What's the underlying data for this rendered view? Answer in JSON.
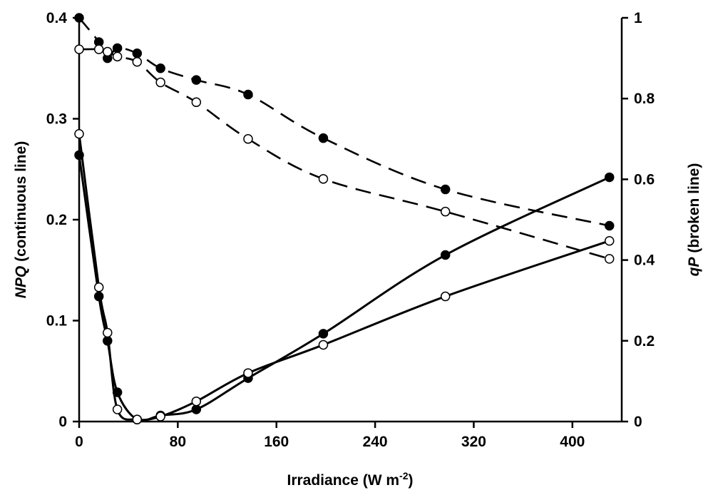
{
  "chart_data": {
    "type": "line",
    "title": "",
    "xlabel": {
      "main": "Irradiance (W m",
      "sup": "-2",
      "close": ")"
    },
    "ylabel_left": {
      "italic": "NPQ",
      "rest": " (continuous line)"
    },
    "ylabel_right": {
      "italic": "qP",
      "rest": " (broken line)"
    },
    "xlim": [
      0,
      440
    ],
    "ylim_left": [
      0,
      0.4
    ],
    "ylim_right": [
      0,
      1
    ],
    "xticks": [
      0,
      80,
      160,
      240,
      320,
      400
    ],
    "xtick_labels": [
      "0",
      "80",
      "160",
      "240",
      "320",
      "400"
    ],
    "yticks_left": [
      0,
      0.1,
      0.2,
      0.3,
      0.4
    ],
    "ytick_labels_left": [
      "0",
      "0.1",
      "0.2",
      "0.3",
      "0.4"
    ],
    "yticks_right": [
      0,
      0.2,
      0.4,
      0.6,
      0.8,
      1.0
    ],
    "ytick_labels_right": [
      "0",
      "0.2",
      "0.4",
      "0.6",
      "0.8",
      "1"
    ],
    "series": [
      {
        "name": "NPQ filled",
        "axis": "left",
        "marker": "filled",
        "line": "solid",
        "x": [
          0,
          16,
          23,
          31,
          47,
          66,
          95,
          137,
          198,
          297,
          430
        ],
        "y": [
          0.264,
          0.124,
          0.08,
          0.029,
          0.002,
          0.006,
          0.012,
          0.043,
          0.087,
          0.165,
          0.242
        ]
      },
      {
        "name": "NPQ open",
        "axis": "left",
        "marker": "open",
        "line": "solid",
        "x": [
          0,
          16,
          23,
          31,
          47,
          66,
          95,
          137,
          198,
          297,
          430
        ],
        "y": [
          0.285,
          0.133,
          0.088,
          0.012,
          0.002,
          0.005,
          0.02,
          0.048,
          0.076,
          0.124,
          0.179
        ]
      },
      {
        "name": "qP filled",
        "axis": "right",
        "marker": "filled",
        "line": "dashed",
        "x": [
          0,
          16,
          23,
          31,
          47,
          66,
          95,
          137,
          198,
          297,
          430
        ],
        "y": [
          1.0,
          0.94,
          0.9,
          0.925,
          0.912,
          0.875,
          0.846,
          0.81,
          0.702,
          0.575,
          0.485
        ]
      },
      {
        "name": "qP open",
        "axis": "right",
        "marker": "open",
        "line": "dashed",
        "x": [
          0,
          16,
          23,
          31,
          47,
          66,
          95,
          137,
          198,
          297,
          430
        ],
        "y": [
          0.922,
          0.922,
          0.916,
          0.904,
          0.891,
          0.84,
          0.791,
          0.7,
          0.601,
          0.52,
          0.403
        ]
      }
    ]
  }
}
